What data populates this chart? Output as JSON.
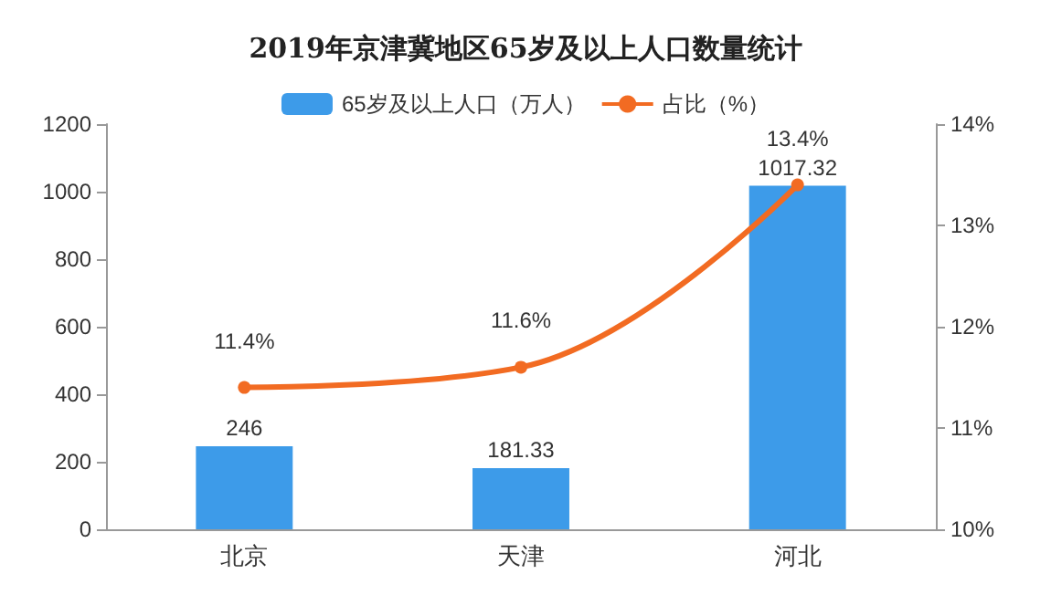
{
  "chart_data": {
    "type": "bar",
    "title": "2019年京津冀地区65岁及以上人口数量统计",
    "categories": [
      "北京",
      "天津",
      "河北"
    ],
    "series": [
      {
        "name": "65岁及以上人口（万人）",
        "color": "#3d9be9",
        "values": [
          246,
          181.33,
          1017.32
        ],
        "value_labels": [
          "246",
          "181.33",
          "1017.32"
        ]
      },
      {
        "name": "占比（%）",
        "type": "line",
        "axis": "y2",
        "color": "#f26b22",
        "marker": "circle",
        "values": [
          11.4,
          11.6,
          13.4
        ],
        "value_labels": [
          "11.4%",
          "11.6%",
          "13.4%"
        ]
      }
    ],
    "ylim": [
      0,
      1200
    ],
    "yticks": [
      0,
      200,
      400,
      600,
      800,
      1000,
      1200
    ],
    "y2lim": [
      10,
      14
    ],
    "y2ticks": [
      {
        "value": 10,
        "label": "10%"
      },
      {
        "value": 11,
        "label": "11%"
      },
      {
        "value": 12,
        "label": "12%"
      },
      {
        "value": 13,
        "label": "13%"
      },
      {
        "value": 14,
        "label": "14%"
      }
    ],
    "grid": false,
    "legend": "top"
  }
}
